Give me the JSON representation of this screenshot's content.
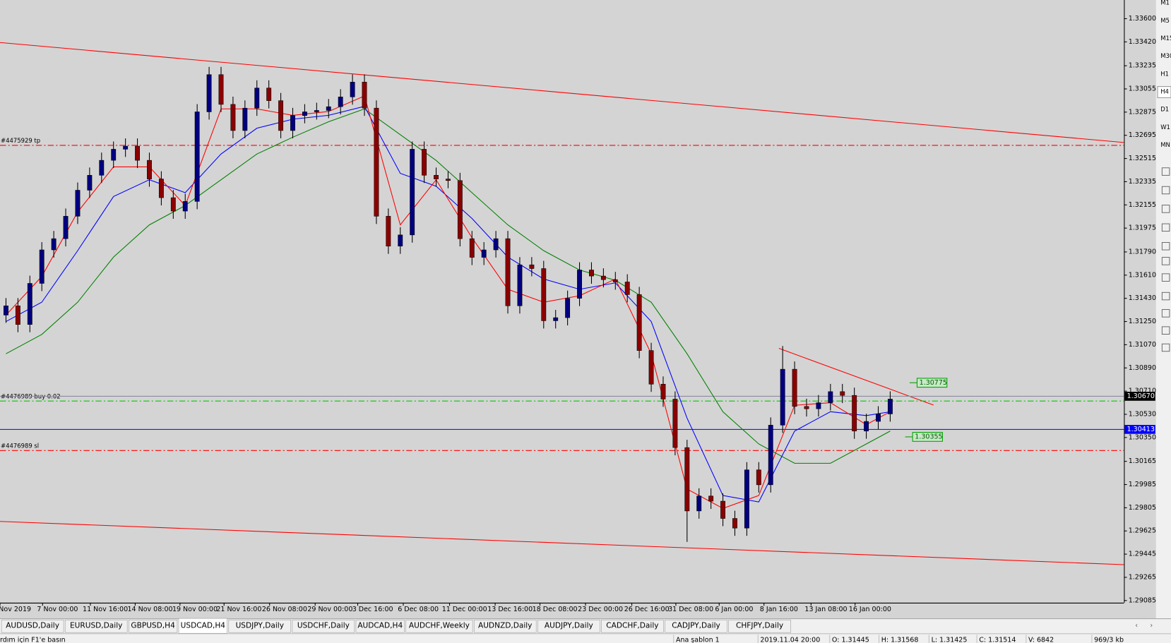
{
  "chart_data": {
    "type": "candlestick",
    "ylim": [
      1.29068,
      1.33745
    ],
    "yticks": [
      {
        "value": 1.336,
        "label": "1.33600"
      },
      {
        "value": 1.3342,
        "label": "1.33420"
      },
      {
        "value": 1.33235,
        "label": "1.33235"
      },
      {
        "value": 1.33055,
        "label": "1.33055"
      },
      {
        "value": 1.32875,
        "label": "1.32875"
      },
      {
        "value": 1.32695,
        "label": "1.32695"
      },
      {
        "value": 1.32515,
        "label": "1.32515"
      },
      {
        "value": 1.32335,
        "label": "1.32335"
      },
      {
        "value": 1.32155,
        "label": "1.32155"
      },
      {
        "value": 1.31975,
        "label": "1.31975"
      },
      {
        "value": 1.3179,
        "label": "1.31790"
      },
      {
        "value": 1.3161,
        "label": "1.31610"
      },
      {
        "value": 1.3143,
        "label": "1.31430"
      },
      {
        "value": 1.3125,
        "label": "1.31250"
      },
      {
        "value": 1.3107,
        "label": "1.31070"
      },
      {
        "value": 1.3089,
        "label": "1.30890"
      },
      {
        "value": 1.3071,
        "label": "1.30710"
      },
      {
        "value": 1.3053,
        "label": "1.30530"
      },
      {
        "value": 1.3035,
        "label": "1.30350"
      },
      {
        "value": 1.30165,
        "label": "1.30165"
      },
      {
        "value": 1.29985,
        "label": "1.29985"
      },
      {
        "value": 1.29805,
        "label": "1.29805"
      },
      {
        "value": 1.29625,
        "label": "1.29625"
      },
      {
        "value": 1.29445,
        "label": "1.29445"
      },
      {
        "value": 1.29265,
        "label": "1.29265"
      },
      {
        "value": 1.29085,
        "label": "1.29085"
      }
    ],
    "x_labels": [
      "Nov 2019",
      "7 Nov 00:00",
      "11 Nov 16:00",
      "14 Nov 08:00",
      "19 Nov 00:00",
      "21 Nov 16:00",
      "26 Nov 08:00",
      "29 Nov 00:00",
      "3 Dec 16:00",
      "6 Dec 08:00",
      "11 Dec 00:00",
      "13 Dec 16:00",
      "18 Dec 08:00",
      "23 Dec 00:00",
      "26 Dec 16:00",
      "31 Dec 08:00",
      "6 Jan 00:00",
      "8 Jan 16:00",
      "13 Jan 08:00",
      "16 Jan 00:00"
    ],
    "bull_color": "#000080",
    "bear_color": "#8b0000",
    "open": [
      1.313,
      1.31372,
      1.31227,
      1.31546,
      1.31806,
      1.31893,
      1.32067,
      1.32269,
      1.32385,
      1.32501,
      1.32587,
      1.32611,
      1.32501,
      1.32356,
      1.32211,
      1.32107,
      1.32182,
      1.32877,
      1.33166,
      1.32935,
      1.32732,
      1.32906,
      1.33062,
      1.32964,
      1.32732,
      1.32848,
      1.32877,
      1.32888,
      1.32917,
      1.32993,
      1.33108,
      1.32906,
      1.32067,
      1.31835,
      1.31922,
      1.32587,
      1.32385,
      1.32356,
      1.32344,
      1.31893,
      1.31748,
      1.31806,
      1.31893,
      1.31372,
      1.3169,
      1.31661,
      1.31256,
      1.3128,
      1.3143,
      1.3165,
      1.31603,
      1.31575,
      1.31557,
      1.31459,
      1.31025,
      1.30764,
      1.30648,
      1.30272,
      1.2978,
      1.29896,
      1.29856,
      1.29722,
      1.29647,
      1.30099,
      1.29983,
      1.30446,
      1.3088,
      1.30591,
      1.30573,
      1.3062,
      1.30706,
      1.30677,
      1.304,
      1.30475,
      1.30533
    ],
    "high": [
      1.31432,
      1.31432,
      1.31606,
      1.31866,
      1.31953,
      1.32127,
      1.32329,
      1.32445,
      1.32561,
      1.32647,
      1.32671,
      1.32671,
      1.32561,
      1.32416,
      1.32271,
      1.32242,
      1.32937,
      1.33226,
      1.33226,
      1.32995,
      1.32966,
      1.33122,
      1.33122,
      1.33024,
      1.32908,
      1.32937,
      1.32948,
      1.32977,
      1.33053,
      1.33168,
      1.33168,
      1.32966,
      1.32127,
      1.31982,
      1.32647,
      1.32647,
      1.32445,
      1.32416,
      1.32404,
      1.31953,
      1.31866,
      1.31953,
      1.31953,
      1.3175,
      1.3175,
      1.31721,
      1.3134,
      1.3149,
      1.3171,
      1.3171,
      1.31663,
      1.31635,
      1.31617,
      1.31519,
      1.31085,
      1.30824,
      1.30708,
      1.30332,
      1.29956,
      1.29956,
      1.29916,
      1.29782,
      1.30159,
      1.30159,
      1.30506,
      1.3106,
      1.3094,
      1.30651,
      1.3068,
      1.30766,
      1.30766,
      1.30737,
      1.30535,
      1.30593,
      1.30708
    ],
    "low": [
      1.3124,
      1.31167,
      1.31167,
      1.31486,
      1.31746,
      1.31833,
      1.32007,
      1.32209,
      1.32325,
      1.32441,
      1.32527,
      1.32441,
      1.32296,
      1.32151,
      1.32047,
      1.32047,
      1.32122,
      1.32817,
      1.32875,
      1.32672,
      1.32672,
      1.32846,
      1.32904,
      1.32672,
      1.32672,
      1.32788,
      1.32817,
      1.32828,
      1.32857,
      1.32933,
      1.32846,
      1.32007,
      1.31775,
      1.31775,
      1.31862,
      1.32325,
      1.32296,
      1.32284,
      1.31833,
      1.31688,
      1.31688,
      1.31746,
      1.31312,
      1.31312,
      1.31601,
      1.31196,
      1.31196,
      1.3122,
      1.3137,
      1.31543,
      1.31515,
      1.31497,
      1.31399,
      1.30965,
      1.30704,
      1.30588,
      1.30212,
      1.2954,
      1.2972,
      1.29796,
      1.29662,
      1.29587,
      1.29587,
      1.29923,
      1.29923,
      1.30386,
      1.30531,
      1.30513,
      1.30513,
      1.3056,
      1.30617,
      1.3034,
      1.3034,
      1.30415,
      1.30473
    ],
    "close": [
      1.31372,
      1.31227,
      1.31546,
      1.31806,
      1.31893,
      1.32067,
      1.32269,
      1.32385,
      1.32501,
      1.32587,
      1.32611,
      1.32501,
      1.32356,
      1.32211,
      1.32107,
      1.32182,
      1.32877,
      1.33166,
      1.32935,
      1.32732,
      1.32906,
      1.33062,
      1.32964,
      1.32732,
      1.32848,
      1.32877,
      1.32888,
      1.32917,
      1.32993,
      1.33108,
      1.32906,
      1.32067,
      1.31835,
      1.31922,
      1.32587,
      1.32385,
      1.32356,
      1.32344,
      1.31893,
      1.31748,
      1.31806,
      1.31893,
      1.31372,
      1.3169,
      1.31661,
      1.31256,
      1.3128,
      1.3143,
      1.3165,
      1.31603,
      1.31575,
      1.31557,
      1.31459,
      1.31025,
      1.30764,
      1.30648,
      1.30272,
      1.2978,
      1.29896,
      1.29856,
      1.29722,
      1.29647,
      1.30099,
      1.29983,
      1.30446,
      1.3088,
      1.30591,
      1.30573,
      1.3062,
      1.30706,
      1.30677,
      1.304,
      1.30475,
      1.30533,
      1.30648
    ],
    "indicator_x": [
      0,
      3,
      6,
      9,
      12,
      15,
      18,
      21,
      24,
      27,
      30,
      33,
      36,
      39,
      42,
      45,
      48,
      51,
      54,
      57,
      60,
      63,
      66,
      69,
      72,
      74
    ],
    "indicators": [
      {
        "color": "#008000",
        "values": [
          1.31,
          1.3115,
          1.314,
          1.3175,
          1.32,
          1.3215,
          1.3235,
          1.3255,
          1.3268,
          1.328,
          1.329,
          1.327,
          1.325,
          1.3225,
          1.32,
          1.318,
          1.3165,
          1.3157,
          1.314,
          1.31,
          1.3055,
          1.303,
          1.3015,
          1.3015,
          1.303,
          1.304
        ]
      },
      {
        "color": "#0000ff",
        "values": [
          1.3125,
          1.314,
          1.318,
          1.3222,
          1.3235,
          1.3225,
          1.3255,
          1.3275,
          1.3282,
          1.3285,
          1.3292,
          1.324,
          1.323,
          1.3205,
          1.3175,
          1.3158,
          1.315,
          1.3155,
          1.3125,
          1.305,
          1.299,
          1.2985,
          1.304,
          1.3055,
          1.3052,
          1.3055
        ]
      },
      {
        "color": "#ff0000",
        "values": [
          1.313,
          1.316,
          1.321,
          1.3245,
          1.3245,
          1.3215,
          1.329,
          1.329,
          1.3285,
          1.3288,
          1.33,
          1.32,
          1.3235,
          1.319,
          1.315,
          1.314,
          1.3145,
          1.3158,
          1.31,
          1.2995,
          1.298,
          1.299,
          1.306,
          1.3062,
          1.3045,
          1.3055
        ]
      }
    ],
    "levels": [
      {
        "label": "#4475929 tp",
        "value": 1.32617,
        "color": "#ff0000"
      },
      {
        "label": "#4476989 buy 0.02",
        "value": 1.30633,
        "color": "#00cc00"
      },
      {
        "label": "#4476989 sl",
        "value": 1.30249,
        "color": "#ff0000"
      }
    ],
    "price_lines": [
      {
        "value": 1.3067,
        "label": "1.30670",
        "color": "#8c8ca0",
        "box": "#000000"
      },
      {
        "value": 1.30413,
        "color": "#0000ff",
        "box": "#0000ff"
      }
    ],
    "price_tags": [
      1.30775,
      1.30355
    ]
  },
  "tabs": [
    "AUDUSD,Daily",
    "EURUSD,Daily",
    "GBPUSD,H4",
    "USDCAD,H4",
    "USDJPY,Daily",
    "USDCHF,Daily",
    "AUDCAD,H4",
    "AUDCHF,Weekly",
    "AUDNZD,Daily",
    "AUDJPY,Daily",
    "CADCHF,Daily",
    "CADJPY,Daily",
    "CHFJPY,Daily"
  ],
  "active_tab": "USDCAD,H4",
  "timeframes": [
    "M1",
    "M5",
    "M15",
    "M30",
    "H1",
    "H4",
    "D1",
    "W1",
    "MN"
  ],
  "status": {
    "help": "rdım için F1'e basın",
    "template": "Ana şablon 1",
    "time": "2019.11.04 20:00",
    "open": "O: 1.31445",
    "high": "H: 1.31568",
    "low": "L: 1.31425",
    "close": "C: 1.31514",
    "volume": "V: 6842",
    "traffic": "969/3 kb"
  }
}
